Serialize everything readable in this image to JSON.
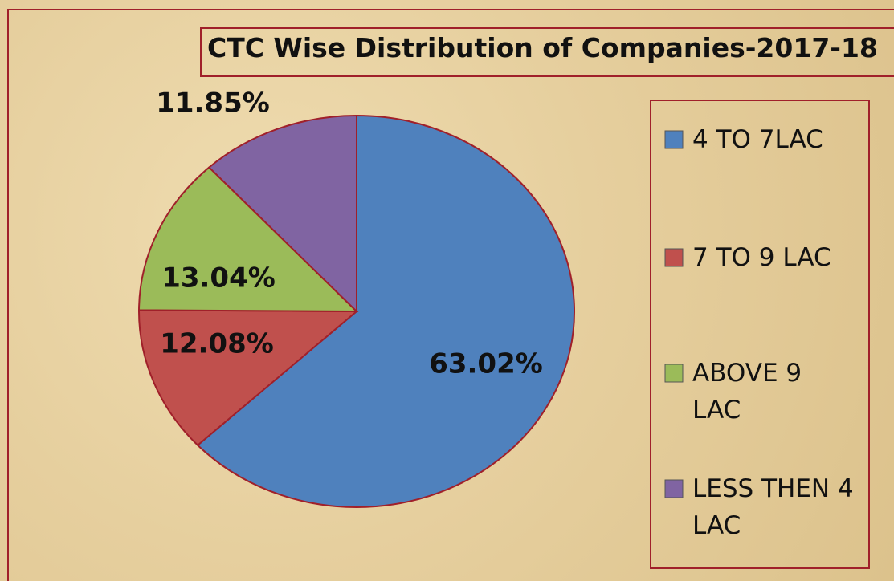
{
  "chart_data": {
    "type": "pie",
    "title": "CTC Wise Distribution of Companies-2017-18",
    "categories": [
      "4 TO 7LAC",
      "7 TO 9 LAC",
      "ABOVE 9 LAC",
      "LESS THEN 4 LAC"
    ],
    "values": [
      63.02,
      12.08,
      13.04,
      11.85
    ],
    "value_labels": [
      "63.02%",
      "12.08%",
      "13.04%",
      "11.85%"
    ],
    "colors": [
      "#4f81bd",
      "#c0504d",
      "#9bbb59",
      "#8064a2"
    ],
    "legend": "right"
  }
}
